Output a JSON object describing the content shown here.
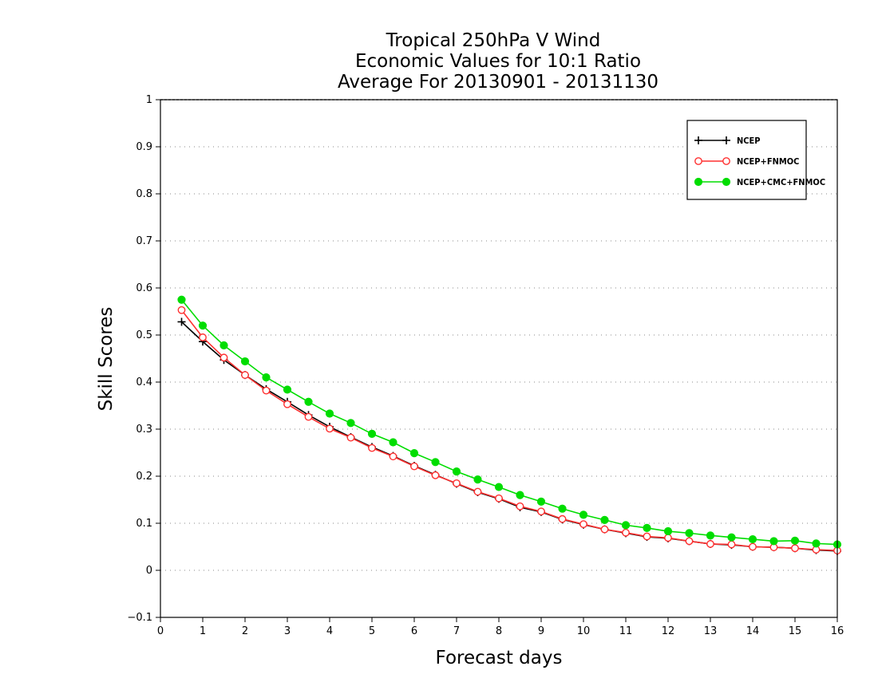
{
  "chart_data": {
    "type": "line",
    "title": [
      "Tropical 250hPa V Wind",
      "Economic Values for 10:1 Ratio",
      "Average For 20130901 - 20131130"
    ],
    "xlabel": "Forecast days",
    "ylabel": "Skill Scores",
    "xlim": [
      0,
      16
    ],
    "ylim": [
      -0.1,
      1
    ],
    "xticks": [
      0,
      1,
      2,
      3,
      4,
      5,
      6,
      7,
      8,
      9,
      10,
      11,
      12,
      13,
      14,
      15,
      16
    ],
    "yticks": [
      -0.1,
      0,
      0.1,
      0.2,
      0.3,
      0.4,
      0.5,
      0.6,
      0.7,
      0.8,
      0.9,
      1
    ],
    "ytick_labels": [
      "−0.1",
      "0",
      "0.1",
      "0.2",
      "0.3",
      "0.4",
      "0.5",
      "0.6",
      "0.7",
      "0.8",
      "0.9",
      "1"
    ],
    "grid": "horizontal-dotted",
    "legend_position": "top-right",
    "x": [
      0.5,
      1,
      1.5,
      2,
      2.5,
      3,
      3.5,
      4,
      4.5,
      5,
      5.5,
      6,
      6.5,
      7,
      7.5,
      8,
      8.5,
      9,
      9.5,
      10,
      10.5,
      11,
      11.5,
      12,
      12.5,
      13,
      13.5,
      14,
      14.5,
      15,
      15.5,
      16
    ],
    "series": [
      {
        "name": "NCEP",
        "color": "#000000",
        "marker": "plus",
        "values": [
          0.528,
          0.486,
          0.447,
          0.415,
          0.385,
          0.358,
          0.33,
          0.305,
          0.283,
          0.262,
          0.243,
          0.222,
          0.203,
          0.184,
          0.166,
          0.152,
          0.134,
          0.124,
          0.108,
          0.097,
          0.087,
          0.079,
          0.071,
          0.068,
          0.062,
          0.056,
          0.054,
          0.05,
          0.049,
          0.047,
          0.043,
          0.041
        ]
      },
      {
        "name": "NCEP+FNMOC",
        "color": "#ff3030",
        "marker": "open-circle",
        "values": [
          0.553,
          0.495,
          0.452,
          0.415,
          0.382,
          0.353,
          0.326,
          0.301,
          0.282,
          0.26,
          0.242,
          0.221,
          0.202,
          0.185,
          0.167,
          0.153,
          0.136,
          0.125,
          0.109,
          0.098,
          0.087,
          0.08,
          0.072,
          0.069,
          0.062,
          0.056,
          0.055,
          0.05,
          0.049,
          0.047,
          0.044,
          0.042
        ]
      },
      {
        "name": "NCEP+CMC+FNMOC",
        "color": "#00dd00",
        "marker": "filled-circle",
        "values": [
          0.575,
          0.52,
          0.478,
          0.444,
          0.41,
          0.384,
          0.358,
          0.333,
          0.313,
          0.29,
          0.272,
          0.249,
          0.23,
          0.21,
          0.193,
          0.177,
          0.16,
          0.146,
          0.131,
          0.118,
          0.107,
          0.096,
          0.09,
          0.083,
          0.079,
          0.074,
          0.07,
          0.066,
          0.062,
          0.063,
          0.057,
          0.055
        ]
      }
    ]
  }
}
